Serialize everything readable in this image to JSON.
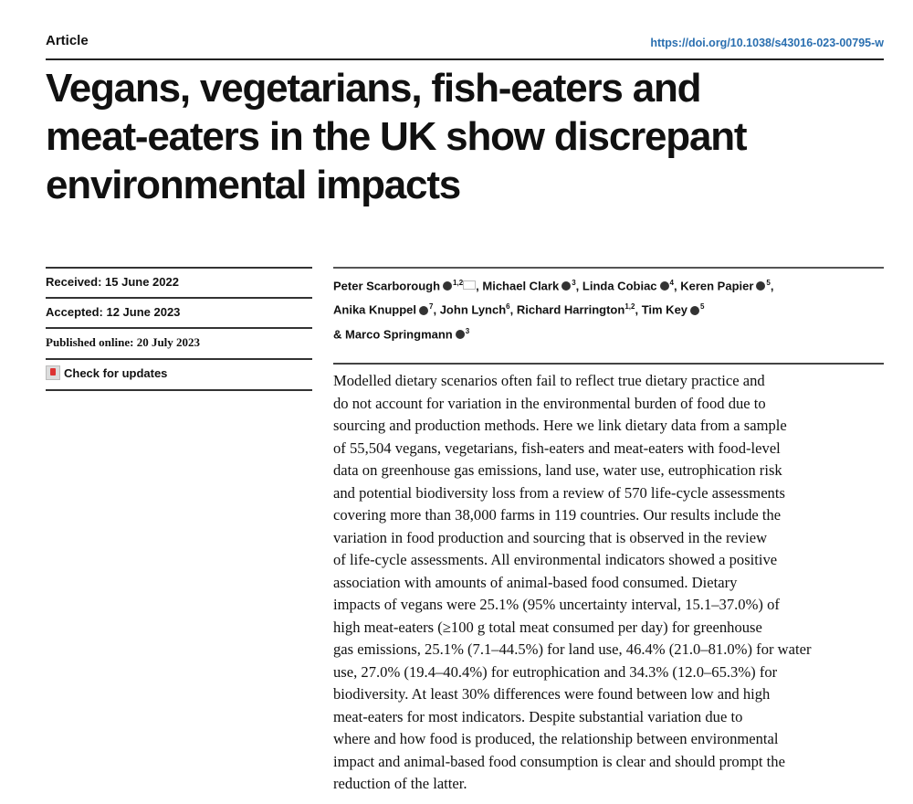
{
  "header": {
    "section": "Article",
    "doi": "https://doi.org/10.1038/s43016-023-00795-w"
  },
  "title_lines": [
    "Vegans, vegetarians, fish-eaters and",
    "meat-eaters in the UK show discrepant",
    "environmental impacts"
  ],
  "meta": {
    "received": "Received: 15 June 2022",
    "accepted": "Accepted: 12 June 2023",
    "published": "Published online: 20 July 2023",
    "check_updates": "Check for updates"
  },
  "authors": [
    {
      "name": "Peter Scarborough",
      "sup": "1,2"
    },
    {
      "name": "Michael Clark",
      "sup": "3"
    },
    {
      "name": "Linda Cobiac",
      "sup": "4"
    },
    {
      "name": "Keren Papier",
      "sup": "5"
    },
    {
      "name": "Anika Knuppel",
      "sup": "7"
    },
    {
      "name": "John Lynch",
      "sup": "6"
    },
    {
      "name": "Richard Harrington",
      "sup": "1,2"
    },
    {
      "name": "Tim Key",
      "sup": "5"
    },
    {
      "name": "& Marco Springmann",
      "sup": "3"
    }
  ],
  "abstract_lines": [
    "Modelled dietary scenarios often fail to reflect true dietary practice and",
    "do not account for variation in the environmental burden of food due to",
    "sourcing and production methods. Here we link dietary data from a sample",
    "of 55,504 vegans, vegetarians, fish-eaters and meat-eaters with food-level",
    "data on greenhouse gas emissions, land use, water use, eutrophication risk",
    "and potential biodiversity loss from a review of 570 life-cycle assessments",
    "covering more than 38,000 farms in 119 countries. Our results include the",
    "variation in food production and sourcing that is observed in the review",
    "of life-cycle assessments. All environmental indicators showed a positive",
    "association with amounts of animal-based food consumed. Dietary",
    "impacts of vegans were 25.1% (95% uncertainty interval, 15.1–37.0%) of",
    "high meat-eaters (≥100 g total meat consumed per day) for greenhouse",
    "gas emissions, 25.1% (7.1–44.5%) for land use, 46.4% (21.0–81.0%) for water",
    "use, 27.0% (19.4–40.4%) for eutrophication and 34.3% (12.0–65.3%) for",
    "biodiversity. At least 30% differences were found between low and high",
    "meat-eaters for most indicators. Despite substantial variation due to",
    "where and how food is produced, the relationship between environmental",
    "impact and animal-based food consumption is clear and should prompt the",
    "reduction of the latter."
  ]
}
